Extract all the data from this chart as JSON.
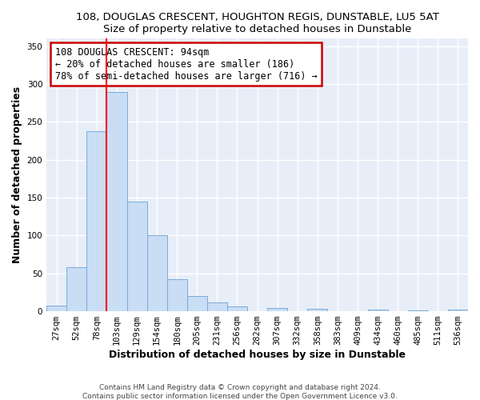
{
  "title": "108, DOUGLAS CRESCENT, HOUGHTON REGIS, DUNSTABLE, LU5 5AT",
  "subtitle": "Size of property relative to detached houses in Dunstable",
  "xlabel": "Distribution of detached houses by size in Dunstable",
  "ylabel": "Number of detached properties",
  "bar_labels": [
    "27sqm",
    "52sqm",
    "78sqm",
    "103sqm",
    "129sqm",
    "154sqm",
    "180sqm",
    "205sqm",
    "231sqm",
    "256sqm",
    "282sqm",
    "307sqm",
    "332sqm",
    "358sqm",
    "383sqm",
    "409sqm",
    "434sqm",
    "460sqm",
    "485sqm",
    "511sqm",
    "536sqm"
  ],
  "bar_values": [
    8,
    58,
    238,
    290,
    145,
    100,
    42,
    20,
    12,
    6,
    0,
    4,
    0,
    3,
    0,
    0,
    2,
    0,
    1,
    0,
    2
  ],
  "bar_color": "#c9ddf5",
  "bar_edge_color": "#7aaad8",
  "red_line_x": 3,
  "annotation_text": "108 DOUGLAS CRESCENT: 94sqm\n← 20% of detached houses are smaller (186)\n78% of semi-detached houses are larger (716) →",
  "annotation_box_color": "white",
  "annotation_box_edge_color": "#cc0000",
  "ylim": [
    0,
    360
  ],
  "yticks": [
    0,
    50,
    100,
    150,
    200,
    250,
    300,
    350
  ],
  "footer1": "Contains HM Land Registry data © Crown copyright and database right 2024.",
  "footer2": "Contains public sector information licensed under the Open Government Licence v3.0.",
  "bg_color": "#ffffff",
  "plot_bg_color": "#e8eef8",
  "grid_color": "#ffffff",
  "title_fontsize": 9.5,
  "subtitle_fontsize": 9.5,
  "annotation_fontsize": 8.5,
  "tick_fontsize": 7.5,
  "axis_label_fontsize": 9,
  "footer_fontsize": 6.5
}
